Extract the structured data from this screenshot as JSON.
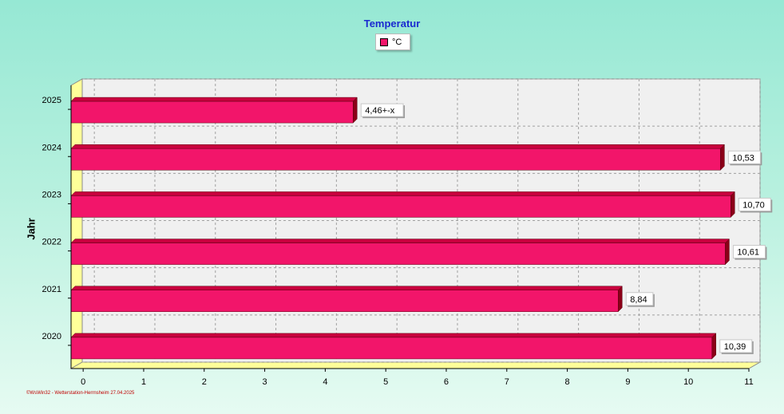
{
  "window": {
    "title": "Temperatur"
  },
  "legend": {
    "label": "°C",
    "color": "#f2156a"
  },
  "colors": {
    "bar": "#f2156a",
    "bar_side": "#8b0018",
    "bar_top": "#c8003e",
    "floor": "#ffff99",
    "wall": "#f0f0f0",
    "title": "#1a2ad0",
    "copyright": "#c00000"
  },
  "footer": {
    "copyright": "©WsWin32 - Wetterstation-Herrnsheim 27.04.2025"
  },
  "chart_data": {
    "type": "bar",
    "orientation": "horizontal",
    "title": "Temperatur",
    "ylabel": "Jahr",
    "xlabel": "",
    "categories": [
      "2025",
      "2024",
      "2023",
      "2022",
      "2021",
      "2020"
    ],
    "series": [
      {
        "name": "°C",
        "values": [
          4.46,
          10.53,
          10.7,
          10.61,
          8.84,
          10.39
        ]
      }
    ],
    "data_labels": [
      "4,46+-x",
      "10,53",
      "10,70",
      "10,61",
      "8,84",
      "10,39"
    ],
    "xlim": [
      -0.2,
      11
    ],
    "xticks": [
      "0",
      "1",
      "2",
      "3",
      "4",
      "5",
      "6",
      "7",
      "8",
      "9",
      "10",
      "11"
    ],
    "grid": true,
    "legend_position": "top-center",
    "style": "3d"
  }
}
